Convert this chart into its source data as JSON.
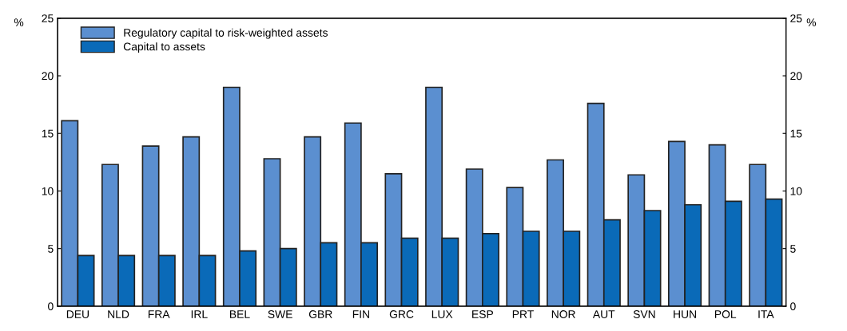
{
  "chart_data": {
    "type": "bar",
    "ylabel": "%",
    "y2label": "%",
    "categories": [
      "DEU",
      "NLD",
      "FRA",
      "IRL",
      "BEL",
      "SWE",
      "GBR",
      "FIN",
      "GRC",
      "LUX",
      "ESP",
      "PRT",
      "NOR",
      "AUT",
      "SVN",
      "HUN",
      "POL",
      "ITA"
    ],
    "series": [
      {
        "name": "Regulatory capital to risk-weighted assets",
        "color": "#5b8fd0",
        "values": [
          16.1,
          12.3,
          13.9,
          14.7,
          19.0,
          12.8,
          14.7,
          15.9,
          11.5,
          19.0,
          11.9,
          10.3,
          12.7,
          17.6,
          11.4,
          14.3,
          14.0,
          12.3
        ]
      },
      {
        "name": "Capital to assets",
        "color": "#0a6ab8",
        "values": [
          4.4,
          4.4,
          4.4,
          4.4,
          4.8,
          5.0,
          5.5,
          5.5,
          5.9,
          5.9,
          6.3,
          6.5,
          6.5,
          7.5,
          8.3,
          8.8,
          9.1,
          9.3
        ]
      }
    ],
    "ylim": [
      0,
      25
    ],
    "yticks": [
      0,
      5,
      10,
      15,
      20,
      25
    ],
    "y2lim": [
      0,
      25
    ],
    "y2ticks": [
      0,
      5,
      10,
      15,
      20,
      25
    ],
    "grid": false,
    "legend": "top left"
  }
}
